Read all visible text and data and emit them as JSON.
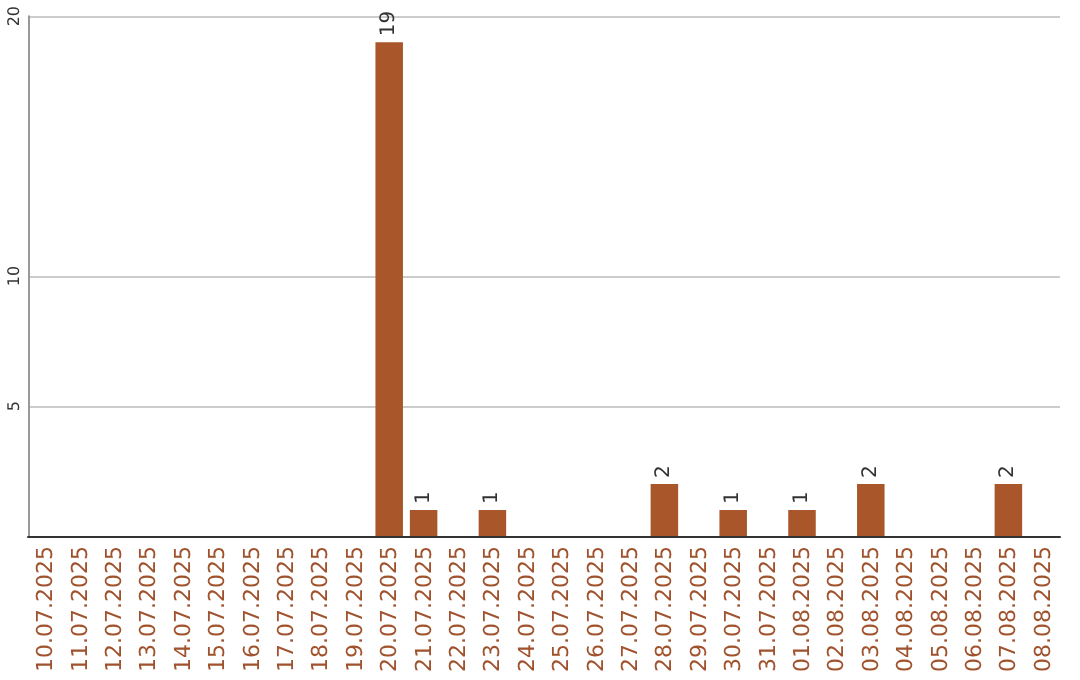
{
  "chart_data": {
    "type": "bar",
    "categories": [
      "10.07.2025",
      "11.07.2025",
      "12.07.2025",
      "13.07.2025",
      "14.07.2025",
      "15.07.2025",
      "16.07.2025",
      "17.07.2025",
      "18.07.2025",
      "19.07.2025",
      "20.07.2025",
      "21.07.2025",
      "22.07.2025",
      "23.07.2025",
      "24.07.2025",
      "25.07.2025",
      "26.07.2025",
      "27.07.2025",
      "28.07.2025",
      "29.07.2025",
      "30.07.2025",
      "31.07.2025",
      "01.08.2025",
      "02.08.2025",
      "03.08.2025",
      "04.08.2025",
      "05.08.2025",
      "06.08.2025",
      "07.08.2025",
      "08.08.2025"
    ],
    "values": [
      0,
      0,
      0,
      0,
      0,
      0,
      0,
      0,
      0,
      0,
      19,
      1,
      0,
      1,
      0,
      0,
      0,
      0,
      2,
      0,
      1,
      0,
      1,
      0,
      2,
      0,
      0,
      0,
      2,
      0
    ],
    "value_labels": [
      null,
      null,
      null,
      null,
      null,
      null,
      null,
      null,
      null,
      null,
      "19",
      "1",
      null,
      "1",
      null,
      null,
      null,
      null,
      "2",
      null,
      "1",
      null,
      "1",
      null,
      "2",
      null,
      null,
      null,
      "2",
      null
    ],
    "color": "#a9572a",
    "ylim": [
      0,
      20
    ],
    "yticks": [
      5,
      10,
      20
    ],
    "grid": "y"
  }
}
